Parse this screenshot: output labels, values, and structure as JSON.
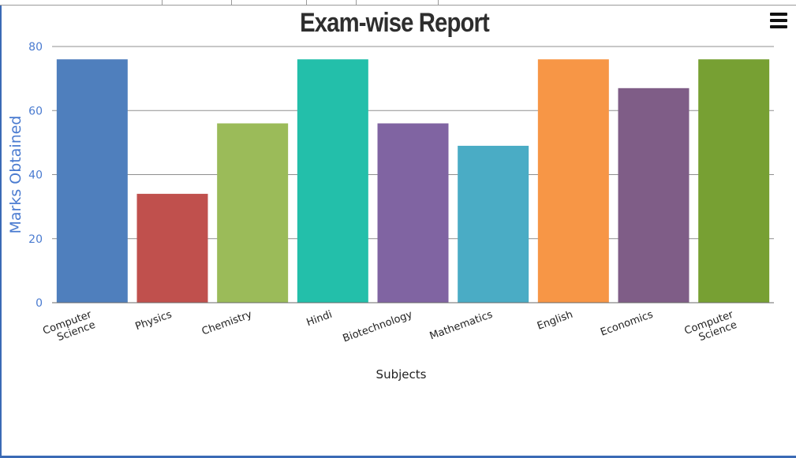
{
  "chart_data": {
    "type": "bar",
    "title": "Exam-wise Report",
    "xlabel": "Subjects",
    "ylabel": "Marks Obtained",
    "ylim": [
      0,
      80
    ],
    "yticks": [
      0,
      20,
      40,
      60,
      80
    ],
    "grid": true,
    "categories": [
      [
        "Computer",
        "Science"
      ],
      [
        "Physics"
      ],
      [
        "Chemistry"
      ],
      [
        "Hindi"
      ],
      [
        "Biotechnology"
      ],
      [
        "Mathematics"
      ],
      [
        "English"
      ],
      [
        "Economics"
      ],
      [
        "Computer",
        "Science"
      ]
    ],
    "values": [
      76,
      34,
      56,
      76,
      56,
      49,
      76,
      67,
      76
    ],
    "colors": [
      "#4f7fbd",
      "#c0504d",
      "#9bbb59",
      "#23bfaa",
      "#8064a2",
      "#4aacc5",
      "#f79646",
      "#7f5d87",
      "#77a033"
    ]
  },
  "toolbar": {
    "menu_icon": "hamburger-menu-icon"
  },
  "colors": {
    "frame_border": "#3b6ab5",
    "axis_text": "#4a7bd0",
    "title_text": "#2e2e2e"
  }
}
